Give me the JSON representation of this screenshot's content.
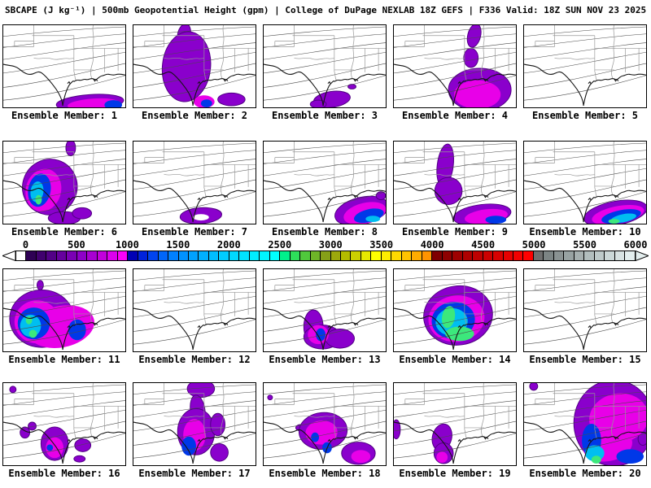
{
  "title": "SBCAPE (J kg⁻¹) | 500mb Geopotential Height (gpm) | College of DuPage NEXLAB 18Z GEFS | F336 Valid: 18Z SUN NOV 23 2025",
  "variable": "SBCAPE",
  "variable_units": "J kg⁻¹",
  "overlay": "500mb Geopotential Height (gpm)",
  "source": "College of DuPage NEXLAB",
  "model_run": "18Z GEFS",
  "forecast_hour": "F336",
  "valid_time": "18Z SUN NOV 23 2025",
  "colorbar": {
    "ticks": [
      "0",
      "500",
      "1000",
      "1500",
      "2000",
      "2500",
      "3000",
      "3500",
      "4000",
      "4500",
      "5000",
      "5500",
      "6000"
    ],
    "min": 0,
    "max": 6000,
    "interval": 100,
    "below_min_color": "#ffffff",
    "above_max_color": "#e4eeee",
    "cell_colors": [
      "#2e0054",
      "#40006e",
      "#520086",
      "#66009e",
      "#7a00b4",
      "#8e00c8",
      "#a800d2",
      "#c200dc",
      "#dc00ee",
      "#fa00fa",
      "#0000b4",
      "#0022dc",
      "#0044f0",
      "#0066fa",
      "#0080ff",
      "#0092ff",
      "#00a2ff",
      "#00b0ff",
      "#00beff",
      "#00ccff",
      "#00d8ff",
      "#00e2ff",
      "#00ecff",
      "#00f6ff",
      "#00ffff",
      "#00f08c",
      "#2ede5a",
      "#50c83c",
      "#6eb428",
      "#86a018",
      "#9ca80c",
      "#b4bc00",
      "#ccd000",
      "#e6e800",
      "#ffff00",
      "#ffee00",
      "#ffd900",
      "#ffc300",
      "#ffac00",
      "#ff9400",
      "#7e0000",
      "#8e0000",
      "#9e0000",
      "#ae0000",
      "#be0000",
      "#cc0000",
      "#d80000",
      "#e60000",
      "#f20000",
      "#ff0000",
      "#6e6e6e",
      "#7c8484",
      "#8a9292",
      "#98a2a2",
      "#a6b0b0",
      "#b2bebe",
      "#becaca",
      "#ccd8d8",
      "#d8e2e2",
      "#e4eeee"
    ]
  },
  "palette": {
    "purple": "#8a00cc",
    "purple_edge": "#500082",
    "magenta": "#e800e8",
    "blue": "#0038e8",
    "cyan": "#00bef0",
    "green": "#3ce87c",
    "white": "#ffffff"
  },
  "members": [
    {
      "id": 1,
      "label": "Ensemble Member: 1",
      "cape_blobs": [
        [
          108,
          97,
          42,
          10,
          -4,
          "purple"
        ],
        [
          112,
          99,
          32,
          7,
          -4,
          "magenta"
        ],
        [
          137,
          100,
          11,
          6,
          0,
          "blue"
        ]
      ]
    },
    {
      "id": 2,
      "label": "Ensemble Member: 2",
      "cape_blobs": [
        [
          63,
          12,
          8,
          14,
          12,
          "purple"
        ],
        [
          66,
          52,
          30,
          44,
          6,
          "purple"
        ],
        [
          122,
          93,
          17,
          8,
          0,
          "purple"
        ],
        [
          88,
          96,
          13,
          8,
          0,
          "magenta"
        ],
        [
          91,
          98,
          7,
          5,
          0,
          "blue"
        ]
      ]
    },
    {
      "id": 3,
      "label": "Ensemble Member: 3",
      "cape_blobs": [
        [
          85,
          93,
          23,
          10,
          -8,
          "purple"
        ],
        [
          68,
          99,
          10,
          5,
          0,
          "purple"
        ],
        [
          110,
          77,
          5,
          3,
          0,
          "purple"
        ]
      ]
    },
    {
      "id": 4,
      "label": "Ensemble Member: 4",
      "cape_blobs": [
        [
          100,
          13,
          8,
          15,
          14,
          "purple"
        ],
        [
          96,
          41,
          9,
          12,
          0,
          "purple"
        ],
        [
          107,
          81,
          39,
          27,
          0,
          "purple"
        ],
        [
          104,
          87,
          29,
          18,
          0,
          "magenta"
        ]
      ]
    },
    {
      "id": 5,
      "label": "Ensemble Member: 5",
      "cape_blobs": []
    },
    {
      "id": 6,
      "label": "Ensemble Member: 6",
      "cape_blobs": [
        [
          84,
          8,
          6,
          10,
          0,
          "purple"
        ],
        [
          58,
          57,
          34,
          35,
          18,
          "purple"
        ],
        [
          76,
          96,
          20,
          8,
          0,
          "purple"
        ],
        [
          98,
          90,
          12,
          7,
          0,
          "purple"
        ],
        [
          50,
          61,
          22,
          27,
          14,
          "magenta"
        ],
        [
          45,
          61,
          14,
          21,
          10,
          "blue"
        ],
        [
          42,
          63,
          8,
          13,
          8,
          "cyan"
        ],
        [
          44,
          73,
          4,
          6,
          0,
          "green"
        ]
      ]
    },
    {
      "id": 7,
      "label": "Ensemble Member: 7",
      "cape_blobs": [
        [
          84,
          93,
          26,
          10,
          -4,
          "purple"
        ],
        [
          84,
          95,
          10,
          4,
          0,
          "white"
        ]
      ]
    },
    {
      "id": 8,
      "label": "Ensemble Member: 8",
      "cape_blobs": [
        [
          122,
          87,
          34,
          17,
          -14,
          "purple"
        ],
        [
          146,
          68,
          6,
          5,
          0,
          "purple"
        ],
        [
          126,
          90,
          27,
          13,
          -14,
          "magenta"
        ],
        [
          131,
          93,
          19,
          8,
          -14,
          "blue"
        ],
        [
          136,
          97,
          9,
          4,
          0,
          "cyan"
        ]
      ]
    },
    {
      "id": 9,
      "label": "Ensemble Member: 9",
      "cape_blobs": [
        [
          64,
          30,
          10,
          27,
          7,
          "purple"
        ],
        [
          68,
          62,
          17,
          17,
          0,
          "purple"
        ],
        [
          110,
          92,
          36,
          13,
          -7,
          "purple"
        ],
        [
          115,
          94,
          27,
          9,
          -7,
          "magenta"
        ],
        [
          127,
          98,
          13,
          5,
          0,
          "blue"
        ]
      ]
    },
    {
      "id": 10,
      "label": "Ensemble Member: 10",
      "cape_blobs": [
        [
          114,
          90,
          40,
          15,
          -11,
          "purple"
        ],
        [
          117,
          92,
          33,
          11,
          -11,
          "magenta"
        ],
        [
          121,
          94,
          25,
          8,
          -11,
          "blue"
        ],
        [
          124,
          96,
          16,
          5,
          -11,
          "cyan"
        ],
        [
          112,
          100,
          7,
          3,
          0,
          "green"
        ]
      ]
    },
    {
      "id": 11,
      "label": "Ensemble Member: 11",
      "cape_blobs": [
        [
          46,
          20,
          4,
          6,
          0,
          "purple"
        ],
        [
          48,
          62,
          40,
          36,
          0,
          "purple"
        ],
        [
          72,
          72,
          42,
          26,
          -12,
          "magenta"
        ],
        [
          42,
          66,
          28,
          27,
          0,
          "magenta"
        ],
        [
          38,
          68,
          20,
          20,
          0,
          "blue"
        ],
        [
          92,
          76,
          11,
          13,
          0,
          "blue"
        ],
        [
          34,
          71,
          13,
          14,
          0,
          "cyan"
        ],
        [
          32,
          64,
          4,
          5,
          0,
          "green"
        ],
        [
          37,
          81,
          5,
          5,
          0,
          "green"
        ]
      ]
    },
    {
      "id": 12,
      "label": "Ensemble Member: 12",
      "cape_blobs": []
    },
    {
      "id": 13,
      "label": "Ensemble Member: 13",
      "cape_blobs": [
        [
          62,
          72,
          12,
          21,
          0,
          "purple"
        ],
        [
          73,
          85,
          23,
          15,
          0,
          "purple"
        ],
        [
          95,
          87,
          18,
          12,
          0,
          "purple"
        ],
        [
          68,
          82,
          13,
          12,
          0,
          "magenta"
        ],
        [
          71,
          82,
          6,
          8,
          0,
          "blue"
        ]
      ]
    },
    {
      "id": 14,
      "label": "Ensemble Member: 14",
      "cape_blobs": [
        [
          80,
          58,
          43,
          37,
          -8,
          "purple"
        ],
        [
          78,
          62,
          35,
          29,
          -8,
          "magenta"
        ],
        [
          74,
          64,
          27,
          23,
          -8,
          "blue"
        ],
        [
          72,
          66,
          20,
          17,
          -8,
          "cyan"
        ],
        [
          68,
          60,
          8,
          14,
          10,
          "green"
        ],
        [
          82,
          81,
          18,
          9,
          0,
          "green"
        ]
      ]
    },
    {
      "id": 15,
      "label": "Ensemble Member: 15",
      "cape_blobs": []
    },
    {
      "id": 16,
      "label": "Ensemble Member: 16",
      "cape_blobs": [
        [
          12,
          8,
          4,
          4,
          0,
          "purple"
        ],
        [
          27,
          62,
          6,
          7,
          0,
          "purple"
        ],
        [
          36,
          54,
          5,
          5,
          0,
          "purple"
        ],
        [
          64,
          76,
          17,
          21,
          0,
          "purple"
        ],
        [
          99,
          78,
          10,
          8,
          0,
          "purple"
        ],
        [
          95,
          95,
          7,
          4,
          0,
          "purple"
        ],
        [
          64,
          81,
          11,
          13,
          0,
          "magenta"
        ],
        [
          58,
          81,
          4,
          4,
          0,
          "blue"
        ]
      ]
    },
    {
      "id": 17,
      "label": "Ensemble Member: 17",
      "cape_blobs": [
        [
          84,
          7,
          17,
          11,
          0,
          "purple"
        ],
        [
          80,
          34,
          9,
          19,
          -8,
          "purple"
        ],
        [
          78,
          61,
          23,
          29,
          0,
          "purple"
        ],
        [
          105,
          52,
          9,
          14,
          0,
          "purple"
        ],
        [
          107,
          87,
          11,
          11,
          0,
          "purple"
        ],
        [
          76,
          65,
          14,
          20,
          0,
          "magenta"
        ],
        [
          69,
          79,
          9,
          12,
          0,
          "blue"
        ]
      ]
    },
    {
      "id": 18,
      "label": "Ensemble Member: 18",
      "cape_blobs": [
        [
          8,
          18,
          3,
          3,
          0,
          "purple"
        ],
        [
          46,
          56,
          6,
          4,
          0,
          "purple"
        ],
        [
          74,
          60,
          30,
          23,
          -5,
          "purple"
        ],
        [
          118,
          88,
          21,
          14,
          0,
          "purple"
        ],
        [
          72,
          62,
          20,
          15,
          -5,
          "magenta"
        ],
        [
          121,
          92,
          12,
          8,
          0,
          "magenta"
        ],
        [
          64,
          68,
          5,
          6,
          0,
          "blue"
        ],
        [
          79,
          81,
          6,
          7,
          0,
          "blue"
        ]
      ]
    },
    {
      "id": 19,
      "label": "Ensemble Member: 19",
      "cape_blobs": [
        [
          3,
          58,
          5,
          12,
          0,
          "purple"
        ],
        [
          60,
          68,
          12,
          17,
          14,
          "purple"
        ],
        [
          62,
          88,
          12,
          13,
          0,
          "purple"
        ],
        [
          60,
          93,
          7,
          7,
          0,
          "magenta"
        ]
      ]
    },
    {
      "id": 20,
      "label": "Ensemble Member: 20",
      "cape_blobs": [
        [
          12,
          4,
          5,
          5,
          0,
          "purple"
        ],
        [
          112,
          50,
          50,
          54,
          0,
          "purple"
        ],
        [
          148,
          70,
          6,
          8,
          0,
          "purple"
        ],
        [
          118,
          44,
          37,
          31,
          -10,
          "magenta"
        ],
        [
          104,
          78,
          31,
          20,
          -10,
          "magenta"
        ],
        [
          84,
          72,
          12,
          21,
          0,
          "blue"
        ],
        [
          132,
          92,
          17,
          9,
          0,
          "blue"
        ],
        [
          88,
          88,
          12,
          10,
          0,
          "cyan"
        ],
        [
          90,
          96,
          6,
          5,
          0,
          "green"
        ]
      ]
    }
  ]
}
